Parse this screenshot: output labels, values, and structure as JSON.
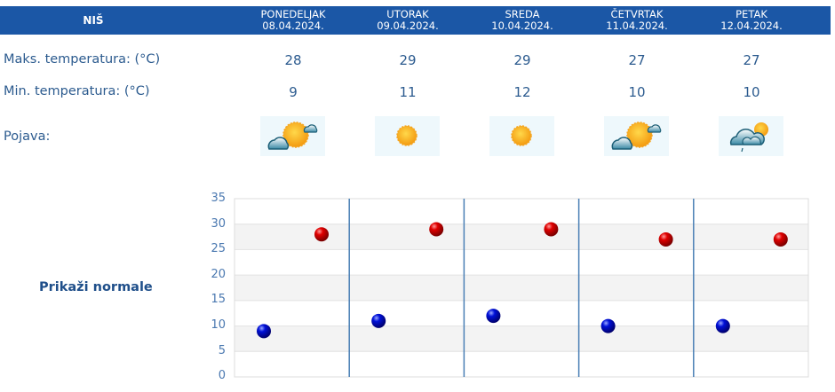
{
  "header": {
    "city": "NIŠ",
    "days": [
      {
        "name": "PONEDELJAK",
        "date": "08.04.2024."
      },
      {
        "name": "UTORAK",
        "date": "09.04.2024."
      },
      {
        "name": "SREDA",
        "date": "10.04.2024."
      },
      {
        "name": "ČETVRTAK",
        "date": "11.04.2024."
      },
      {
        "name": "PETAK",
        "date": "12.04.2024."
      }
    ]
  },
  "rows": {
    "max_label": "Maks. temperatura: (°C)",
    "min_label": "Min. temperatura: (°C)",
    "phenomenon_label": "Pojava:",
    "max_values": [
      "28",
      "29",
      "29",
      "27",
      "27"
    ],
    "min_values": [
      "9",
      "11",
      "12",
      "10",
      "10"
    ],
    "icons": [
      "partly-cloudy-icon",
      "sunny-icon",
      "sunny-icon",
      "partly-cloudy-icon",
      "cloudy-light-rain-icon"
    ]
  },
  "normals_link": "Prikaži normale",
  "colors": {
    "header_bg": "#1b57a6",
    "text": "#2c5b8f",
    "max_marker": "#d40000",
    "min_marker": "#0000c8"
  },
  "chart_data": {
    "type": "scatter",
    "title": "",
    "xlabel": "",
    "ylabel": "",
    "categories": [
      "08.04.2024.",
      "09.04.2024.",
      "10.04.2024.",
      "11.04.2024.",
      "12.04.2024."
    ],
    "series": [
      {
        "name": "Min. temperatura",
        "color": "#0000c8",
        "values": [
          9,
          11,
          12,
          10,
          10
        ]
      },
      {
        "name": "Maks. temperatura",
        "color": "#d40000",
        "values": [
          28,
          29,
          29,
          27,
          27
        ]
      }
    ],
    "yticks": [
      "0",
      "5",
      "10",
      "15",
      "20",
      "25",
      "30",
      "35"
    ],
    "ylim": [
      0,
      35
    ],
    "grid": true,
    "legend": "none"
  }
}
